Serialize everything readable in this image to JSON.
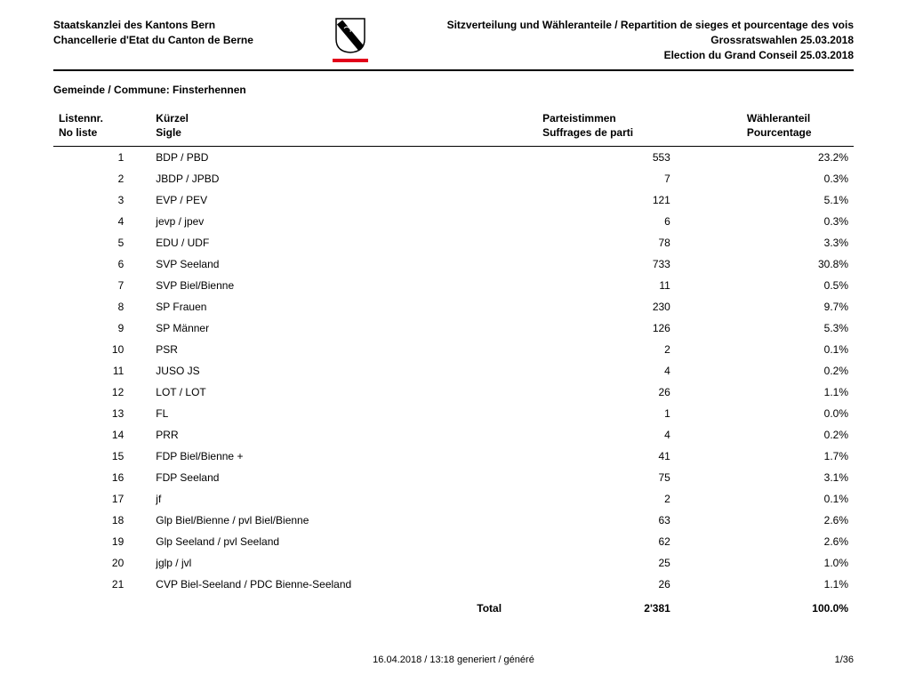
{
  "header": {
    "left_line1": "Staatskanzlei des Kantons Bern",
    "left_line2": "Chancellerie d'Etat du Canton de Berne",
    "right_line1": "Sitzverteilung und Wähleranteile / Repartition de sieges et pourcentage des vois",
    "right_line2": "Grossratswahlen 25.03.2018",
    "right_line3": "Election du Grand Conseil 25.03.2018"
  },
  "commune_label": "Gemeinde / Commune: Finsterhennen",
  "columns": {
    "nr": "Listennr.\nNo liste",
    "sigle": "Kürzel\nSigle",
    "votes": "Parteistimmen\nSuffrages de parti",
    "pct": "Wähleranteil\nPourcentage"
  },
  "rows": [
    {
      "nr": "1",
      "sigle": "BDP / PBD",
      "votes": "553",
      "pct": "23.2%"
    },
    {
      "nr": "2",
      "sigle": "JBDP / JPBD",
      "votes": "7",
      "pct": "0.3%"
    },
    {
      "nr": "3",
      "sigle": "EVP / PEV",
      "votes": "121",
      "pct": "5.1%"
    },
    {
      "nr": "4",
      "sigle": "jevp / jpev",
      "votes": "6",
      "pct": "0.3%"
    },
    {
      "nr": "5",
      "sigle": "EDU / UDF",
      "votes": "78",
      "pct": "3.3%"
    },
    {
      "nr": "6",
      "sigle": "SVP Seeland",
      "votes": "733",
      "pct": "30.8%"
    },
    {
      "nr": "7",
      "sigle": "SVP Biel/Bienne",
      "votes": "11",
      "pct": "0.5%"
    },
    {
      "nr": "8",
      "sigle": "SP Frauen",
      "votes": "230",
      "pct": "9.7%"
    },
    {
      "nr": "9",
      "sigle": "SP Männer",
      "votes": "126",
      "pct": "5.3%"
    },
    {
      "nr": "10",
      "sigle": "PSR",
      "votes": "2",
      "pct": "0.1%"
    },
    {
      "nr": "11",
      "sigle": "JUSO JS",
      "votes": "4",
      "pct": "0.2%"
    },
    {
      "nr": "12",
      "sigle": "LOT / LOT",
      "votes": "26",
      "pct": "1.1%"
    },
    {
      "nr": "13",
      "sigle": "FL",
      "votes": "1",
      "pct": "0.0%"
    },
    {
      "nr": "14",
      "sigle": "PRR",
      "votes": "4",
      "pct": "0.2%"
    },
    {
      "nr": "15",
      "sigle": "FDP Biel/Bienne +",
      "votes": "41",
      "pct": "1.7%"
    },
    {
      "nr": "16",
      "sigle": "FDP Seeland",
      "votes": "75",
      "pct": "3.1%"
    },
    {
      "nr": "17",
      "sigle": "jf",
      "votes": "2",
      "pct": "0.1%"
    },
    {
      "nr": "18",
      "sigle": "Glp Biel/Bienne / pvl Biel/Bienne",
      "votes": "63",
      "pct": "2.6%"
    },
    {
      "nr": "19",
      "sigle": "Glp Seeland / pvl Seeland",
      "votes": "62",
      "pct": "2.6%"
    },
    {
      "nr": "20",
      "sigle": "jglp / jvl",
      "votes": "25",
      "pct": "1.0%"
    },
    {
      "nr": "21",
      "sigle": "CVP Biel-Seeland / PDC Bienne-Seeland",
      "votes": "26",
      "pct": "1.1%"
    }
  ],
  "total": {
    "label": "Total",
    "votes": "2'381",
    "pct": "100.0%"
  },
  "footer": {
    "generated": "16.04.2018 / 13:18 generiert / généré",
    "page": "1/36"
  }
}
